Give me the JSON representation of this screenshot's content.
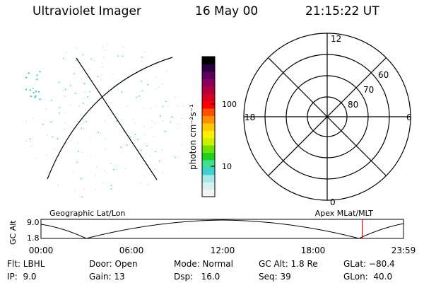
{
  "header": {
    "instrument": "Ultraviolet Imager",
    "date": "16 May 00",
    "time": "21:15:22 UT"
  },
  "colorbar": {
    "unit_label": "photon cm⁻²s⁻¹",
    "ticks": [
      {
        "label": "100",
        "value": 100
      },
      {
        "label": "10",
        "value": 10
      }
    ],
    "colors": [
      "#f4f4f4",
      "#d8f0f0",
      "#a8e8e8",
      "#40d0d0",
      "#40e090",
      "#20d020",
      "#70e000",
      "#c8f000",
      "#fff000",
      "#ffc800",
      "#ff9000",
      "#ff5000",
      "#ff0000",
      "#d80020",
      "#b00040",
      "#8a005a",
      "#5a0060",
      "#2a0040",
      "#000000"
    ]
  },
  "polar_plot": {
    "mlt_labels": {
      "top": "12",
      "right": "6",
      "bottom": "0",
      "left": "18"
    },
    "lat_labels": [
      "60",
      "70",
      "80"
    ]
  },
  "track": {
    "left_title": "Geographic Lat/Lon",
    "right_title": "Apex MLat/MLT",
    "ylabel": "GC Alt",
    "yticks": [
      "9.0",
      "1.8"
    ],
    "xticks": [
      "00:00",
      "06:00",
      "12:00",
      "18:00",
      "23:59"
    ],
    "marker_time_hours": 21.2561,
    "marker_color": "#e00000"
  },
  "info": {
    "row1": {
      "flt": "Flt: LBHL",
      "door": "Door: Open",
      "mode": "Mode: Normal",
      "gc_alt": "GC Alt: 1.8 Re",
      "glat": "GLat: −80.4"
    },
    "row2": {
      "ip": "IP:  9.0",
      "gain": "Gain: 13",
      "dsp": "Dsp:   16.0",
      "seq": "Seq: 39",
      "glon": "GLon:  40.0"
    }
  }
}
